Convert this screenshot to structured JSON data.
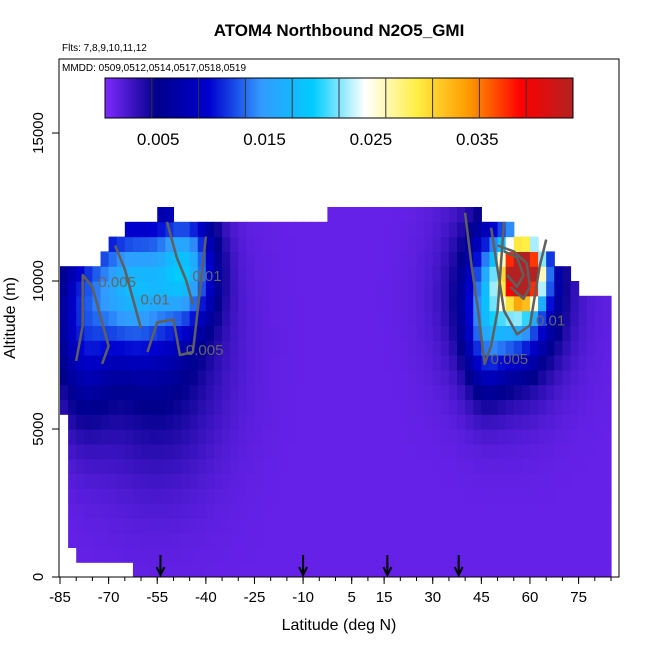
{
  "chart_data": {
    "type": "heatmap",
    "title": "ATOM4 Northbound N2O5_GMI",
    "flights_note": "Flts: 7,8,9,10,11,12",
    "dates_note": "MMDD: 0509,0512,0514,0517,0518,0519",
    "xlabel": "Latitude (deg N)",
    "ylabel": "Altitude (m)",
    "xlim": [
      -85,
      85
    ],
    "ylim": [
      0,
      17500
    ],
    "x_ticks": [
      "-85",
      "-70",
      "-55",
      "-40",
      "-25",
      "-10",
      "5",
      "15",
      "30",
      "45",
      "60",
      "75"
    ],
    "y_ticks": [
      "0",
      "5000",
      "10000",
      "15000"
    ],
    "colorbar": {
      "ticks": [
        "0.005",
        "0.015",
        "0.025",
        "0.035"
      ],
      "range": [
        0,
        0.044
      ],
      "colors": [
        "#7f2aff",
        "#00008b",
        "#0000d0",
        "#3399ff",
        "#00ccff",
        "#ffffff",
        "#ffee44",
        "#ff9900",
        "#ff0000",
        "#b22222"
      ]
    },
    "background_value": 0.001,
    "top_boundary": [
      {
        "lat": -85,
        "alt": 10400
      },
      {
        "lat": -74,
        "alt": 10400
      },
      {
        "lat": -70,
        "alt": 11400
      },
      {
        "lat": -55,
        "alt": 12300
      },
      {
        "lat": -40,
        "alt": 12100
      },
      {
        "lat": -25,
        "alt": 12200
      },
      {
        "lat": -10,
        "alt": 12200
      },
      {
        "lat": 5,
        "alt": 12300
      },
      {
        "lat": 15,
        "alt": 12400
      },
      {
        "lat": 30,
        "alt": 12500
      },
      {
        "lat": 38,
        "alt": 12800
      },
      {
        "lat": 45,
        "alt": 12300
      },
      {
        "lat": 55,
        "alt": 11800
      },
      {
        "lat": 65,
        "alt": 11000
      },
      {
        "lat": 70,
        "alt": 10500
      },
      {
        "lat": 74,
        "alt": 10000
      },
      {
        "lat": 76,
        "alt": 9400
      },
      {
        "lat": 85,
        "alt": 9400
      }
    ],
    "bottom_boundary": [
      {
        "lat": -85,
        "alt": 7300
      },
      {
        "lat": -83,
        "alt": 4800
      },
      {
        "lat": -82,
        "alt": 1000
      },
      {
        "lat": -78,
        "alt": 500
      },
      {
        "lat": -72,
        "alt": 500
      },
      {
        "lat": -70,
        "alt": 500
      },
      {
        "lat": -65,
        "alt": 400
      },
      {
        "lat": -58,
        "alt": 0
      },
      {
        "lat": 85,
        "alt": 0
      }
    ],
    "enhancements": [
      {
        "lat": -63,
        "alt": 9900,
        "sigma_lat": 9,
        "sigma_alt": 1500,
        "value": 0.013
      },
      {
        "lat": -46,
        "alt": 10500,
        "sigma_lat": 6,
        "sigma_alt": 1300,
        "value": 0.013
      },
      {
        "lat": -78,
        "alt": 8500,
        "sigma_lat": 6,
        "sigma_alt": 2200,
        "value": 0.007
      },
      {
        "lat": -55,
        "alt": 8000,
        "sigma_lat": 14,
        "sigma_alt": 3000,
        "value": 0.005
      },
      {
        "lat": 58,
        "alt": 10300,
        "sigma_lat": 4,
        "sigma_alt": 700,
        "value": 0.04
      },
      {
        "lat": 55,
        "alt": 9800,
        "sigma_lat": 7,
        "sigma_alt": 1500,
        "value": 0.015
      },
      {
        "lat": 53,
        "alt": 9500,
        "sigma_lat": 12,
        "sigma_alt": 2200,
        "value": 0.007
      },
      {
        "lat": 46,
        "alt": 8300,
        "sigma_lat": 4,
        "sigma_alt": 1500,
        "value": 0.006
      }
    ],
    "contours": [
      {
        "label": "0.005",
        "points": [
          [
            -80,
            7300
          ],
          [
            -78,
            8500
          ],
          [
            -78,
            10200
          ],
          [
            -75,
            9800
          ],
          [
            -70,
            7800
          ],
          [
            -72,
            7200
          ]
        ]
      },
      {
        "label": "0.005",
        "points": [
          [
            -58,
            7600
          ],
          [
            -55,
            8600
          ],
          [
            -50,
            8700
          ],
          [
            -48,
            7500
          ],
          [
            -44,
            7600
          ],
          [
            -42,
            9500
          ],
          [
            -40,
            11500
          ]
        ]
      },
      {
        "label": "0.01",
        "points": [
          [
            -68,
            11200
          ],
          [
            -65,
            10400
          ],
          [
            -62,
            9200
          ],
          [
            -60,
            8400
          ]
        ]
      },
      {
        "label": "0.01",
        "points": [
          [
            -52,
            12000
          ],
          [
            -49,
            10800
          ],
          [
            -46,
            10000
          ],
          [
            -44,
            9200
          ]
        ]
      },
      {
        "label": "0.005",
        "points": [
          [
            40,
            12300
          ],
          [
            42,
            10500
          ],
          [
            44,
            9000
          ],
          [
            46,
            7200
          ],
          [
            48,
            7800
          ],
          [
            50,
            9000
          ],
          [
            52,
            12000
          ]
        ]
      },
      {
        "label": "",
        "points": [
          [
            50,
            11200
          ],
          [
            55,
            11000
          ],
          [
            59,
            10600
          ],
          [
            60,
            9800
          ],
          [
            58,
            9400
          ],
          [
            54,
            9800
          ]
        ]
      },
      {
        "label": "",
        "points": [
          [
            52,
            11000
          ],
          [
            56,
            10800
          ],
          [
            58,
            10200
          ],
          [
            56,
            9800
          ],
          [
            53,
            10200
          ]
        ]
      },
      {
        "label": "0.01",
        "points": [
          [
            48,
            11800
          ],
          [
            52,
            9000
          ],
          [
            56,
            8200
          ],
          [
            60,
            8500
          ],
          [
            63,
            10500
          ],
          [
            65,
            11400
          ]
        ]
      }
    ],
    "flight_arrows_lat": [
      -54,
      -10,
      16,
      38
    ]
  }
}
